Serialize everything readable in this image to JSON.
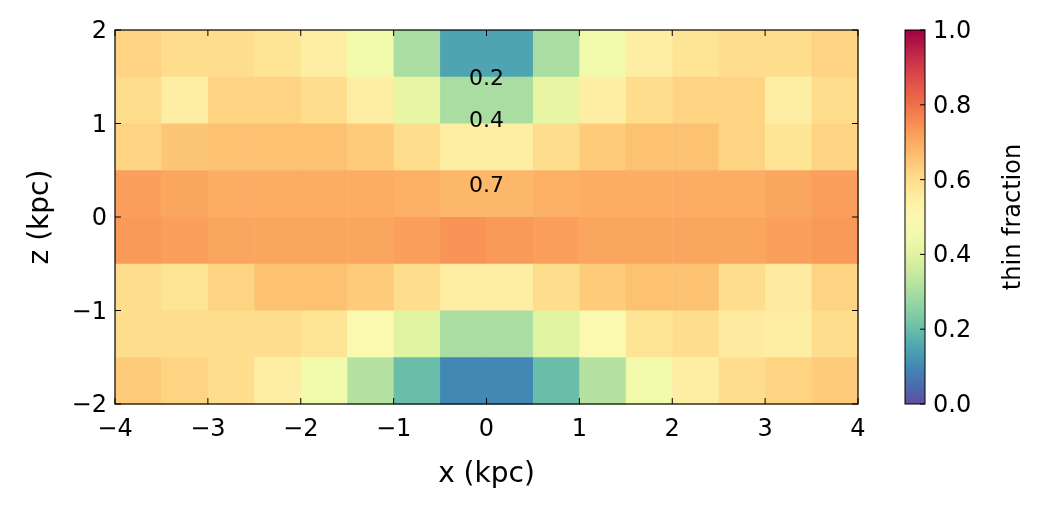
{
  "chart_data": {
    "type": "heatmap",
    "xlabel": "x (kpc)",
    "ylabel": "z (kpc)",
    "clabel": "thin fraction",
    "xlim": [
      -4,
      4
    ],
    "ylim": [
      -2,
      2
    ],
    "xticks": [
      {
        "value": -4,
        "label": "−4"
      },
      {
        "value": -3,
        "label": "−3"
      },
      {
        "value": -2,
        "label": "−2"
      },
      {
        "value": -1,
        "label": "−1"
      },
      0,
      1,
      2,
      3,
      4
    ],
    "yticks": [
      {
        "value": -2,
        "label": "−2"
      },
      {
        "value": -1,
        "label": "−1"
      },
      0,
      1,
      2
    ],
    "clim": [
      0,
      1
    ],
    "cticks": [
      {
        "value": 0,
        "label": "0.0"
      },
      0.2,
      0.4,
      0.6,
      0.8,
      {
        "value": 1,
        "label": "1.0"
      }
    ],
    "cells": [
      [
        0.62,
        0.6,
        0.6,
        0.58,
        0.55,
        0.45,
        0.3,
        0.15,
        0.15,
        0.3,
        0.45,
        0.55,
        0.58,
        0.6,
        0.6,
        0.62
      ],
      [
        0.6,
        0.55,
        0.62,
        0.62,
        0.6,
        0.55,
        0.42,
        0.3,
        0.3,
        0.42,
        0.55,
        0.6,
        0.62,
        0.62,
        0.55,
        0.6
      ],
      [
        0.62,
        0.65,
        0.66,
        0.66,
        0.66,
        0.64,
        0.6,
        0.55,
        0.55,
        0.6,
        0.64,
        0.66,
        0.66,
        0.62,
        0.58,
        0.62
      ],
      [
        0.72,
        0.71,
        0.7,
        0.7,
        0.7,
        0.7,
        0.69,
        0.68,
        0.68,
        0.69,
        0.7,
        0.7,
        0.7,
        0.7,
        0.71,
        0.72
      ],
      [
        0.73,
        0.72,
        0.71,
        0.71,
        0.71,
        0.71,
        0.72,
        0.74,
        0.73,
        0.72,
        0.71,
        0.71,
        0.71,
        0.71,
        0.72,
        0.73
      ],
      [
        0.6,
        0.58,
        0.62,
        0.66,
        0.66,
        0.64,
        0.6,
        0.55,
        0.55,
        0.6,
        0.64,
        0.66,
        0.66,
        0.6,
        0.56,
        0.62
      ],
      [
        0.6,
        0.6,
        0.6,
        0.6,
        0.58,
        0.5,
        0.4,
        0.3,
        0.3,
        0.4,
        0.5,
        0.58,
        0.6,
        0.56,
        0.55,
        0.6
      ],
      [
        0.64,
        0.62,
        0.6,
        0.55,
        0.45,
        0.32,
        0.2,
        0.1,
        0.1,
        0.2,
        0.32,
        0.45,
        0.55,
        0.6,
        0.62,
        0.64
      ]
    ],
    "annotations": [
      "0.2",
      "0.4",
      "0.7"
    ]
  }
}
